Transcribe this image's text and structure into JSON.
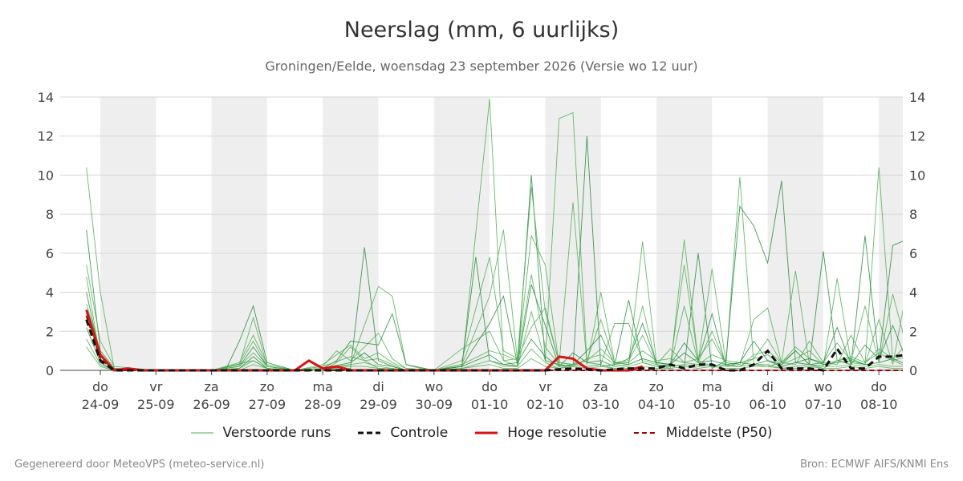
{
  "header": {
    "title": "Neerslag (mm, 6 uurlijks)",
    "subtitle": "Groningen/Eelde, woensdag 23 september 2026 (Versie wo 12 uur)"
  },
  "footer": {
    "left": "Gegenereerd door MeteoVPS (meteo-service.nl)",
    "right": "Bron: ECMWF AIFS/KNMI Ens"
  },
  "legend": [
    {
      "label": "Verstoorde runs",
      "color": "#4caf50",
      "style": "thin"
    },
    {
      "label": "Controle",
      "color": "#111111",
      "style": "dashed"
    },
    {
      "label": "Hoge resolutie",
      "color": "#dd1111",
      "style": "solid"
    },
    {
      "label": "Middelste (P50)",
      "color": "#aa0000",
      "style": "dashed"
    }
  ],
  "chart_data": {
    "type": "line",
    "ylim": [
      0,
      14
    ],
    "yticks": [
      0,
      2,
      4,
      6,
      8,
      10,
      12,
      14
    ],
    "x_unit": "days since first tick",
    "xlim": [
      -0.23,
      14.5
    ],
    "day_ticks": [
      {
        "day": "do",
        "date": "24-09"
      },
      {
        "day": "vr",
        "date": "25-09"
      },
      {
        "day": "za",
        "date": "26-09"
      },
      {
        "day": "zo",
        "date": "27-09"
      },
      {
        "day": "ma",
        "date": "28-09"
      },
      {
        "day": "di",
        "date": "29-09"
      },
      {
        "day": "wo",
        "date": "30-09"
      },
      {
        "day": "do",
        "date": "01-10"
      },
      {
        "day": "vr",
        "date": "02-10"
      },
      {
        "day": "za",
        "date": "03-10"
      },
      {
        "day": "zo",
        "date": "04-10"
      },
      {
        "day": "ma",
        "date": "05-10"
      },
      {
        "day": "di",
        "date": "06-10"
      },
      {
        "day": "wo",
        "date": "07-10"
      },
      {
        "day": "do",
        "date": "08-10"
      }
    ],
    "shaded_days": [
      0,
      2,
      4,
      6,
      8,
      10,
      12,
      14
    ],
    "grid": true,
    "legend_position": "bottom",
    "colors": {
      "members": "#4caf50",
      "members_dark": "#1e8c3a",
      "control": "#111111",
      "hires": "#dd1111",
      "median": "#aa0000"
    },
    "members": [
      {
        "x": [
          -0.25,
          -0.0,
          0.25,
          0.5,
          1,
          2,
          2.75,
          3,
          3.25,
          3.5,
          4,
          4.25,
          4.5,
          4.75,
          5,
          5.25,
          5.5,
          6,
          6.5,
          7,
          7.25,
          7.5,
          7.75,
          8,
          8.25,
          8.5,
          8.75,
          9,
          9.25,
          9.5,
          9.75,
          10,
          10.25,
          10.5,
          10.75,
          11,
          11.25,
          11.5,
          11.75,
          12,
          12.25,
          12.5,
          12.75,
          13,
          13.25,
          13.5,
          13.75,
          14,
          14.25,
          14.5
        ],
        "y": [
          10.4,
          4.0,
          0.1,
          0.0,
          0.0,
          0.0,
          0.5,
          0.1,
          0.0,
          0.0,
          0.0,
          0.4,
          1.2,
          0.5,
          0.1,
          0.0,
          0.0,
          0.0,
          0.1,
          13.9,
          0.5,
          0.2,
          3.0,
          0.5,
          12.9,
          13.2,
          0.4,
          0.3,
          2.4,
          2.4,
          0.5,
          0.3,
          0.1,
          6.7,
          0.5,
          0.2,
          0.3,
          9.9,
          0.3,
          0.2,
          0.4,
          1.0,
          0.3,
          0.1,
          0.5,
          0.6,
          0.3,
          10.4,
          0.5,
          0.2
        ]
      },
      {
        "x": [
          -0.25,
          0.0,
          0.25,
          1,
          2,
          2.25,
          2.5,
          2.75,
          3,
          3.5,
          4,
          4.5,
          4.75,
          5,
          5.25,
          5.5,
          6,
          6.5,
          6.75,
          7,
          7.25,
          7.5,
          7.75,
          8,
          8.25,
          8.5,
          8.75,
          9,
          9.25,
          9.5,
          9.75,
          10,
          10.25,
          10.5,
          10.75,
          11,
          11.25,
          11.5,
          11.75,
          12,
          12.25,
          12.5,
          12.75,
          13,
          13.25,
          13.5,
          13.75,
          14,
          14.25,
          14.5
        ],
        "y": [
          7.2,
          1.0,
          0.1,
          0.0,
          0.0,
          0.0,
          1.5,
          3.3,
          0.4,
          0.0,
          0.0,
          0.1,
          6.3,
          0.5,
          0.2,
          0.0,
          0.0,
          0.2,
          5.8,
          0.5,
          0.3,
          0.2,
          10.0,
          0.5,
          0.3,
          0.2,
          12.0,
          0.2,
          0.3,
          3.6,
          0.4,
          0.2,
          0.3,
          0.2,
          6.0,
          0.1,
          0.5,
          8.4,
          7.4,
          5.5,
          9.7,
          0.4,
          0.3,
          6.1,
          0.5,
          0.3,
          6.9,
          0.5,
          6.4,
          6.7
        ]
      },
      {
        "x": [
          -0.25,
          0.0,
          0.25,
          1,
          2,
          2.5,
          2.75,
          3,
          3.5,
          4,
          4.5,
          5,
          5.25,
          5.5,
          5.75,
          6,
          6.5,
          7,
          7.25,
          7.5,
          7.75,
          8,
          8.25,
          8.5,
          8.75,
          9,
          9.25,
          9.5,
          9.75,
          10,
          10.25,
          10.5,
          10.75,
          11,
          11.25,
          11.5,
          11.75,
          12,
          12.25,
          12.5,
          12.75,
          13,
          13.25,
          13.5,
          13.75,
          14,
          14.25,
          14.5
        ],
        "y": [
          5.4,
          1.5,
          0.2,
          0.0,
          0.0,
          0.3,
          2.7,
          0.2,
          0.0,
          0.0,
          0.3,
          4.3,
          3.8,
          0.3,
          0.1,
          0.0,
          0.3,
          3.8,
          7.2,
          0.5,
          6.9,
          5.4,
          0.3,
          8.6,
          0.3,
          4.0,
          0.4,
          0.3,
          6.6,
          0.4,
          0.3,
          5.4,
          0.5,
          5.2,
          0.4,
          0.3,
          2.6,
          3.2,
          0.4,
          5.1,
          0.3,
          0.2,
          4.7,
          0.4,
          0.3,
          2.6,
          0.3,
          4.1
        ]
      },
      {
        "x": [
          -0.25,
          0.0,
          0.25,
          1,
          2,
          2.5,
          2.75,
          3,
          3.5,
          4,
          4.25,
          4.5,
          5,
          5.25,
          5.5,
          6,
          6.5,
          7,
          7.25,
          7.5,
          7.75,
          8,
          8.25,
          8.5,
          8.75,
          9,
          9.25,
          9.5,
          9.75,
          10,
          10.25,
          10.5,
          10.75,
          11,
          11.25,
          11.5,
          11.75,
          12,
          12.25,
          12.5,
          12.75,
          13,
          13.25,
          13.5,
          13.75,
          14,
          14.25,
          14.5
        ],
        "y": [
          4.8,
          0.6,
          0.1,
          0.0,
          0.0,
          0.4,
          1.8,
          0.3,
          0.0,
          0.2,
          1.0,
          0.5,
          1.9,
          0.6,
          0.1,
          0.0,
          1.1,
          2.0,
          0.5,
          0.6,
          9.4,
          3.0,
          0.4,
          0.3,
          0.5,
          2.6,
          0.4,
          0.4,
          3.3,
          0.3,
          0.2,
          3.3,
          0.4,
          2.0,
          0.3,
          0.2,
          0.6,
          1.6,
          0.4,
          1.2,
          0.6,
          0.4,
          1.4,
          0.5,
          3.3,
          0.4,
          3.9,
          1.2
        ]
      },
      {
        "x": [
          -0.25,
          0.0,
          0.25,
          1,
          2,
          2.5,
          2.75,
          3,
          3.5,
          4,
          4.25,
          4.5,
          5,
          5.25,
          5.5,
          6,
          6.5,
          7,
          7.25,
          7.5,
          7.75,
          8,
          8.25,
          8.5,
          8.75,
          9,
          9.25,
          9.5,
          9.75,
          10,
          10.25,
          10.5,
          10.75,
          11,
          11.25,
          11.5,
          11.75,
          12,
          12.25,
          12.5,
          12.75,
          13,
          13.25,
          13.5,
          13.75,
          14,
          14.25,
          14.5
        ],
        "y": [
          4.0,
          0.7,
          0.1,
          0.0,
          0.0,
          0.2,
          1.2,
          0.2,
          0.0,
          0.1,
          0.5,
          1.5,
          1.3,
          2.9,
          0.3,
          0.0,
          0.2,
          2.4,
          3.8,
          0.3,
          4.4,
          2.3,
          0.2,
          0.3,
          1.0,
          1.8,
          0.3,
          0.6,
          2.4,
          0.4,
          0.3,
          1.4,
          0.5,
          2.9,
          0.2,
          0.4,
          1.5,
          0.5,
          0.3,
          1.0,
          0.3,
          0.4,
          2.2,
          0.3,
          1.3,
          0.6,
          2.3,
          0.5
        ]
      },
      {
        "x": [
          -0.25,
          0.0,
          0.25,
          1,
          2,
          2.5,
          2.75,
          3,
          3.5,
          4,
          4.5,
          4.75,
          5,
          5.25,
          5.5,
          6,
          6.5,
          7,
          7.25,
          7.5,
          7.75,
          8,
          8.25,
          8.5,
          8.75,
          9,
          9.25,
          9.5,
          9.75,
          10,
          10.25,
          10.5,
          10.75,
          11,
          11.25,
          11.5,
          11.75,
          12,
          12.25,
          12.5,
          12.75,
          13,
          13.25,
          13.5,
          13.75,
          14,
          14.25,
          14.5
        ],
        "y": [
          3.4,
          1.0,
          0.1,
          0.0,
          0.0,
          0.3,
          1.5,
          0.2,
          0.0,
          0.3,
          1.3,
          0.6,
          0.9,
          0.4,
          0.1,
          0.0,
          0.5,
          5.8,
          1.0,
          0.6,
          2.2,
          3.2,
          0.4,
          0.3,
          0.5,
          1.1,
          0.4,
          0.5,
          1.8,
          0.3,
          1.1,
          0.4,
          0.6,
          1.6,
          0.3,
          0.2,
          0.8,
          1.0,
          0.4,
          0.3,
          1.5,
          0.4,
          0.3,
          1.8,
          0.4,
          1.1,
          0.6,
          1.3
        ]
      },
      {
        "x": [
          -0.25,
          0.0,
          0.25,
          1,
          2,
          2.5,
          2.75,
          3,
          3.5,
          4,
          4.5,
          4.75,
          5,
          5.25,
          5.5,
          6,
          6.5,
          7,
          7.25,
          7.5,
          7.75,
          8,
          8.25,
          8.5,
          8.75,
          9,
          9.25,
          9.5,
          9.75,
          10,
          10.25,
          10.5,
          10.75,
          11,
          11.25,
          11.5,
          11.75,
          12,
          12.25,
          12.5,
          12.75,
          13,
          13.25,
          13.5,
          13.75,
          14,
          14.25,
          14.5
        ],
        "y": [
          2.9,
          0.5,
          0.1,
          0.0,
          0.0,
          0.2,
          0.9,
          0.2,
          0.0,
          0.2,
          0.7,
          0.5,
          0.6,
          0.3,
          0.0,
          0.0,
          0.3,
          1.0,
          0.8,
          0.5,
          4.9,
          1.2,
          0.3,
          0.2,
          0.6,
          0.8,
          0.3,
          0.4,
          1.0,
          0.5,
          0.6,
          0.4,
          0.3,
          0.8,
          0.5,
          0.4,
          0.6,
          0.8,
          0.3,
          0.6,
          1.0,
          0.3,
          0.5,
          0.7,
          0.4,
          0.9,
          0.5,
          0.7
        ]
      },
      {
        "x": [
          -0.25,
          0.0,
          0.25,
          1,
          2,
          2.5,
          2.75,
          3,
          3.5,
          4,
          4.5,
          4.75,
          5,
          5.25,
          5.5,
          6,
          6.5,
          7,
          7.25,
          7.5,
          7.75,
          8,
          8.25,
          8.5,
          8.75,
          9,
          9.25,
          9.5,
          9.75,
          10,
          10.25,
          10.5,
          10.75,
          11,
          11.25,
          11.5,
          11.75,
          12,
          12.25,
          12.5,
          12.75,
          13,
          13.25,
          13.5,
          13.75,
          14,
          14.25,
          14.5
        ],
        "y": [
          2.2,
          0.4,
          0.0,
          0.0,
          0.0,
          0.1,
          0.7,
          0.1,
          0.0,
          0.1,
          0.4,
          0.9,
          0.3,
          0.2,
          0.0,
          0.0,
          0.2,
          0.8,
          0.3,
          0.4,
          1.6,
          0.7,
          0.2,
          0.9,
          0.4,
          0.5,
          0.2,
          0.3,
          0.6,
          0.4,
          0.3,
          0.9,
          0.4,
          0.5,
          0.3,
          0.4,
          0.3,
          0.5,
          0.2,
          0.4,
          0.6,
          0.3,
          0.4,
          0.5,
          0.3,
          0.4,
          0.6,
          0.3
        ]
      },
      {
        "x": [
          -0.25,
          0.0,
          0.25,
          1,
          2,
          2.5,
          2.75,
          3,
          3.5,
          4,
          4.5,
          4.75,
          5,
          5.25,
          5.5,
          6,
          6.5,
          7,
          7.25,
          7.5,
          7.75,
          8,
          8.25,
          8.5,
          8.75,
          9,
          9.25,
          9.5,
          9.75,
          10,
          10.25,
          10.5,
          10.75,
          11,
          11.25,
          11.5,
          11.75,
          12,
          12.25,
          12.5,
          12.75,
          13,
          13.25,
          13.5,
          13.75,
          14,
          14.25,
          14.5
        ],
        "y": [
          1.6,
          0.3,
          0.0,
          0.0,
          0.0,
          0.1,
          0.5,
          0.1,
          0.0,
          0.1,
          0.3,
          0.4,
          0.2,
          0.1,
          0.0,
          0.0,
          0.1,
          0.5,
          0.2,
          0.2,
          1.1,
          0.4,
          0.1,
          0.3,
          0.2,
          0.3,
          0.1,
          0.2,
          0.4,
          0.2,
          0.2,
          0.3,
          0.2,
          0.3,
          0.2,
          0.2,
          0.3,
          0.3,
          0.1,
          0.2,
          0.3,
          0.2,
          0.2,
          0.3,
          0.2,
          0.3,
          0.2,
          0.2
        ]
      },
      {
        "x": [
          -0.25,
          0.0,
          0.25,
          1,
          2,
          2.5,
          2.75,
          3,
          3.5,
          4,
          4.5,
          4.75,
          5,
          5.25,
          5.5,
          6,
          6.5,
          7,
          7.25,
          7.5,
          7.75,
          8,
          8.25,
          8.5,
          8.75,
          9,
          9.25,
          9.5,
          9.75,
          10,
          10.25,
          10.5,
          10.75,
          11,
          11.25,
          11.5,
          11.75,
          12,
          12.25,
          12.5,
          12.75,
          13,
          13.25,
          13.5,
          13.75,
          14,
          14.25,
          14.5
        ],
        "y": [
          1.2,
          0.2,
          0.0,
          0.0,
          0.0,
          0.0,
          0.3,
          0.1,
          0.0,
          0.0,
          0.2,
          0.2,
          0.1,
          0.1,
          0.0,
          0.0,
          0.1,
          0.3,
          0.1,
          0.1,
          0.6,
          0.2,
          0.1,
          0.2,
          0.1,
          0.2,
          0.1,
          0.1,
          0.2,
          0.1,
          0.1,
          0.2,
          0.1,
          0.2,
          0.1,
          0.1,
          0.2,
          0.2,
          0.1,
          0.1,
          0.2,
          0.1,
          0.1,
          0.2,
          0.1,
          0.2,
          0.1,
          0.1
        ]
      }
    ],
    "control": {
      "x": [
        -0.25,
        0.0,
        0.25,
        0.5,
        1,
        2,
        3,
        4,
        5,
        6,
        7,
        8,
        8.5,
        9,
        9.5,
        10,
        10.25,
        10.5,
        10.75,
        11,
        11.25,
        11.5,
        11.75,
        12,
        12.25,
        12.5,
        12.75,
        13,
        13.25,
        13.5,
        13.75,
        14,
        14.25,
        14.5
      ],
      "y": [
        2.6,
        0.5,
        0.0,
        0.0,
        0.0,
        0.0,
        0.0,
        0.0,
        0.0,
        0.0,
        0.0,
        0.0,
        0.1,
        0.0,
        0.1,
        0.1,
        0.3,
        0.1,
        0.3,
        0.3,
        0.0,
        0.0,
        0.3,
        1.0,
        0.1,
        0.1,
        0.1,
        0.0,
        1.1,
        0.1,
        0.1,
        0.7,
        0.7,
        0.8
      ]
    },
    "hires": {
      "x": [
        -0.25,
        0.0,
        0.25,
        0.5,
        0.75,
        1,
        2,
        3,
        3.5,
        3.75,
        4,
        4.25,
        4.5,
        5,
        6,
        7,
        7.5,
        8,
        8.25,
        8.5,
        8.75,
        9,
        9.25,
        9.5,
        9.75
      ],
      "y": [
        3.1,
        0.8,
        0.0,
        0.1,
        0.0,
        0.0,
        0.0,
        0.0,
        0.0,
        0.5,
        0.1,
        0.2,
        0.0,
        0.0,
        0.0,
        0.0,
        0.0,
        0.0,
        0.7,
        0.6,
        0.1,
        0.0,
        0.0,
        0.0,
        0.2
      ]
    },
    "median": {
      "x": [
        -0.25,
        0.0,
        0.25,
        1,
        2,
        3,
        4,
        5,
        6,
        7,
        8,
        9,
        10,
        11,
        12,
        13,
        14,
        14.5
      ],
      "y": [
        2.8,
        0.6,
        0.0,
        0.0,
        0.0,
        0.0,
        0.0,
        0.0,
        0.0,
        0.0,
        0.0,
        0.0,
        0.0,
        0.0,
        0.0,
        0.0,
        0.0,
        0.0
      ]
    }
  }
}
